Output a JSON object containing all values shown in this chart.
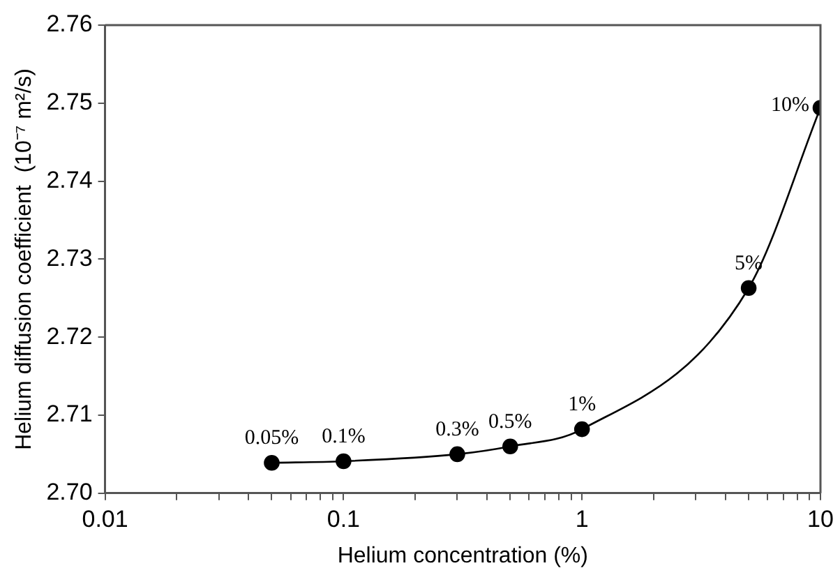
{
  "chart_data": {
    "type": "line",
    "xlabel": "Helium concentration (%)",
    "ylabel": "Helium diffusion coefficient  (10⁻⁷ m²/s)",
    "x": [
      0.05,
      0.1,
      0.3,
      0.5,
      1,
      5,
      10
    ],
    "series": [
      {
        "color": "#000000",
        "values": [
          2.7039,
          2.7041,
          2.705,
          2.706,
          2.7082,
          2.7263,
          2.7494
        ]
      }
    ],
    "log": "x",
    "xlim": [
      0.01,
      10
    ],
    "xticks": [
      0.01,
      {
        "value": 0.02,
        "label": null
      },
      {
        "value": 0.03,
        "label": null
      },
      {
        "value": 0.04,
        "label": null
      },
      {
        "value": 0.05,
        "label": null
      },
      {
        "value": 0.06,
        "label": null
      },
      {
        "value": 0.07,
        "label": null
      },
      {
        "value": 0.08,
        "label": null
      },
      {
        "value": 0.09,
        "label": null
      },
      0.1,
      {
        "value": 0.2,
        "label": null
      },
      {
        "value": 0.3,
        "label": null
      },
      {
        "value": 0.4,
        "label": null
      },
      {
        "value": 0.5,
        "label": null
      },
      {
        "value": 0.6,
        "label": null
      },
      {
        "value": 0.7,
        "label": null
      },
      {
        "value": 0.8,
        "label": null
      },
      {
        "value": 0.9,
        "label": null
      },
      1,
      {
        "value": 2,
        "label": null
      },
      {
        "value": 3,
        "label": null
      },
      {
        "value": 4,
        "label": null
      },
      {
        "value": 5,
        "label": null
      },
      {
        "value": 6,
        "label": null
      },
      {
        "value": 7,
        "label": null
      },
      {
        "value": 8,
        "label": null
      },
      {
        "value": 9,
        "label": null
      },
      10
    ],
    "ylim": [
      2.7,
      2.76
    ],
    "yticks": [
      {
        "value": 2.7,
        "label": "2.70"
      },
      2.71,
      2.72,
      2.73,
      2.74,
      2.75,
      2.76
    ],
    "grid": false,
    "legend": false,
    "marker": "circle",
    "line_style": "solid",
    "annotations": [
      {
        "text": "0.05%",
        "x": 0.05,
        "y": 2.7039
      },
      {
        "text": "0.1%",
        "x": 0.1,
        "y": 2.7041
      },
      {
        "text": "0.3%",
        "x": 0.3,
        "y": 2.705
      },
      {
        "text": "0.5%",
        "x": 0.5,
        "y": 2.706
      },
      {
        "text": "1%",
        "x": 1,
        "y": 2.7082
      },
      {
        "text": "5%",
        "x": 5,
        "y": 2.7263
      },
      {
        "text": "10%",
        "x": 10,
        "y": 2.7494
      }
    ]
  }
}
